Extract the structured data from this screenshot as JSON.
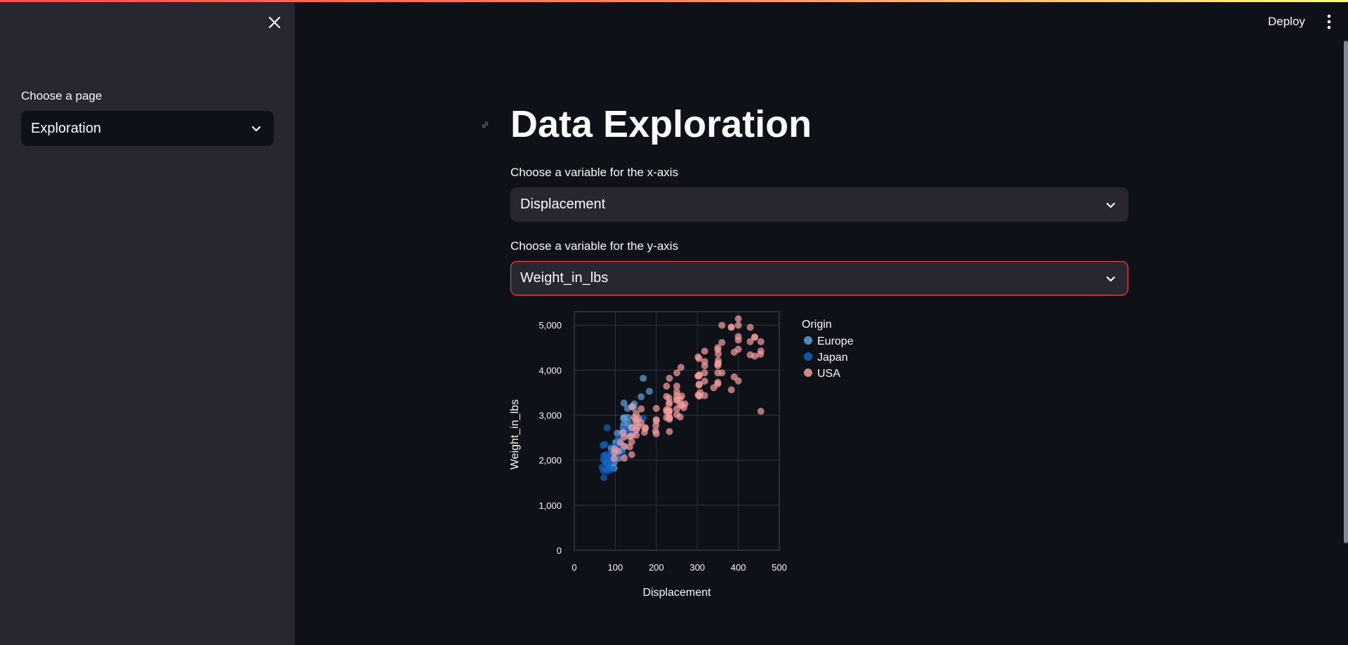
{
  "sidebar": {
    "page_label": "Choose a page",
    "page_value": "Exploration"
  },
  "header": {
    "deploy_label": "Deploy"
  },
  "main": {
    "title": "Data Exploration",
    "x_label": "Choose a variable for the x-axis",
    "x_value": "Displacement",
    "y_label": "Choose a variable for the y-axis",
    "y_value": "Weight_in_lbs"
  },
  "colors": {
    "background": "#0e1117",
    "sidebar": "#262730",
    "accent": "#ff4b4b",
    "grid": "#31333f",
    "europe": "#5d9fd9",
    "japan": "#0e63c4",
    "usa": "#f39b9b"
  },
  "chart_data": {
    "type": "scatter",
    "xlabel": "Displacement",
    "ylabel": "Weight_in_lbs",
    "xlim": [
      0,
      500
    ],
    "ylim": [
      0,
      5300
    ],
    "x_ticks": [
      "0",
      "100",
      "200",
      "300",
      "400",
      "500"
    ],
    "y_ticks": [
      "0",
      "1,000",
      "2,000",
      "3,000",
      "4,000",
      "5,000"
    ],
    "grid": true,
    "legend": {
      "title": "Origin",
      "placement": "right"
    },
    "series": [
      {
        "name": "Europe",
        "points": [
          [
            90,
            2130
          ],
          [
            97,
            1950
          ],
          [
            97,
            2190
          ],
          [
            107,
            2430
          ],
          [
            116,
            2230
          ],
          [
            120,
            2300
          ],
          [
            121,
            2600
          ],
          [
            121,
            2670
          ],
          [
            121,
            2945
          ],
          [
            114,
            2310
          ],
          [
            104,
            2375
          ],
          [
            130,
            3150
          ],
          [
            131,
            2830
          ],
          [
            141,
            3190
          ],
          [
            146,
            3250
          ],
          [
            163,
            3410
          ],
          [
            168,
            3820
          ],
          [
            183,
            3530
          ],
          [
            105,
            2600
          ],
          [
            79,
            1960
          ],
          [
            97,
            1825
          ],
          [
            108,
            2040
          ],
          [
            89,
            1925
          ],
          [
            90,
            2265
          ],
          [
            98,
            2045
          ],
          [
            134,
            2702
          ],
          [
            120,
            2930
          ],
          [
            116,
            2600
          ],
          [
            121,
            3270
          ],
          [
            110,
            2300
          ],
          [
            119,
            2720
          ],
          [
            130,
            2950
          ],
          [
            101,
            2395
          ],
          [
            86,
            1835
          ],
          [
            151,
            2700
          ],
          [
            116,
            2220
          ],
          [
            140,
            2740
          ],
          [
            97,
            2300
          ],
          [
            121,
            2800
          ],
          [
            145,
            3160
          ]
        ]
      },
      {
        "name": "Japan",
        "points": [
          [
            70,
            2330
          ],
          [
            71,
            1773
          ],
          [
            72,
            2100
          ],
          [
            75,
            2350
          ],
          [
            78,
            2125
          ],
          [
            79,
            1825
          ],
          [
            80,
            2720
          ],
          [
            81,
            1760
          ],
          [
            85,
            1940
          ],
          [
            86,
            1980
          ],
          [
            90,
            2150
          ],
          [
            91,
            1800
          ],
          [
            97,
            2100
          ],
          [
            97,
            2300
          ],
          [
            98,
            2040
          ],
          [
            107,
            2210
          ],
          [
            108,
            2380
          ],
          [
            112,
            2320
          ],
          [
            113,
            2370
          ],
          [
            119,
            2560
          ],
          [
            120,
            2700
          ],
          [
            122,
            2300
          ],
          [
            134,
            2540
          ],
          [
            144,
            2600
          ],
          [
            146,
            2900
          ],
          [
            156,
            2800
          ],
          [
            168,
            2930
          ],
          [
            68,
            1845
          ],
          [
            72,
            1613
          ],
          [
            76,
            1965
          ],
          [
            89,
            2050
          ],
          [
            91,
            1985
          ],
          [
            97,
            2155
          ],
          [
            107,
            2464
          ],
          [
            113,
            2226
          ],
          [
            120,
            2120
          ],
          [
            85,
            2070
          ],
          [
            108,
            2255
          ],
          [
            71,
            2015
          ],
          [
            97,
            2300
          ],
          [
            134,
            2655
          ]
        ]
      },
      {
        "name": "USA",
        "points": [
          [
            307,
            3504
          ],
          [
            350,
            3693
          ],
          [
            318,
            3436
          ],
          [
            304,
            3433
          ],
          [
            302,
            3449
          ],
          [
            429,
            4341
          ],
          [
            454,
            4354
          ],
          [
            440,
            4312
          ],
          [
            455,
            4425
          ],
          [
            390,
            3850
          ],
          [
            383,
            3563
          ],
          [
            340,
            3609
          ],
          [
            400,
            3761
          ],
          [
            455,
            3086
          ],
          [
            350,
            4135
          ],
          [
            400,
            4464
          ],
          [
            351,
            4154
          ],
          [
            318,
            4096
          ],
          [
            383,
            4955
          ],
          [
            400,
            4746
          ],
          [
            360,
            4997
          ],
          [
            304,
            3672
          ],
          [
            440,
            4735
          ],
          [
            231,
            3245
          ],
          [
            250,
            3645
          ],
          [
            225,
            3121
          ],
          [
            232,
            2945
          ],
          [
            258,
            3233
          ],
          [
            250,
            3329
          ],
          [
            199,
            2774
          ],
          [
            232,
            3288
          ],
          [
            250,
            3139
          ],
          [
            232,
            2634
          ],
          [
            171,
            2619
          ],
          [
            200,
            2587
          ],
          [
            232,
            3102
          ],
          [
            140,
            2408
          ],
          [
            122,
            2310
          ],
          [
            140,
            2124
          ],
          [
            141,
            3190
          ],
          [
            151,
            2670
          ],
          [
            173,
            2725
          ],
          [
            151,
            2556
          ],
          [
            112,
            2395
          ],
          [
            135,
            2295
          ],
          [
            98,
            2164
          ],
          [
            140,
            2542
          ],
          [
            262,
            3221
          ],
          [
            232,
            2910
          ],
          [
            267,
            3169
          ],
          [
            305,
            3897
          ],
          [
            318,
            4422
          ],
          [
            350,
            4456
          ],
          [
            302,
            3870
          ],
          [
            260,
            4060
          ],
          [
            250,
            3940
          ],
          [
            400,
            4668
          ],
          [
            350,
            4499
          ],
          [
            318,
            4190
          ],
          [
            351,
            4360
          ],
          [
            400,
            5140
          ],
          [
            383,
            4951
          ],
          [
            360,
            4615
          ],
          [
            429,
            4951
          ],
          [
            455,
            4633
          ],
          [
            250,
            3353
          ],
          [
            225,
            3415
          ],
          [
            231,
            3085
          ],
          [
            225,
            3086
          ],
          [
            258,
            2962
          ],
          [
            163,
            3140
          ],
          [
            200,
            2900
          ],
          [
            156,
            2745
          ],
          [
            225,
            3645
          ],
          [
            302,
            4294
          ],
          [
            350,
            3940
          ],
          [
            305,
            3425
          ],
          [
            318,
            3940
          ],
          [
            429,
            4633
          ],
          [
            304,
            4257
          ],
          [
            400,
            4997
          ],
          [
            440,
            4732
          ],
          [
            351,
            4215
          ],
          [
            250,
            3520
          ],
          [
            232,
            3820
          ],
          [
            173,
            2700
          ],
          [
            151,
            3035
          ],
          [
            119,
            2615
          ],
          [
            140,
            2720
          ],
          [
            135,
            2525
          ],
          [
            98,
            2255
          ],
          [
            108,
            2200
          ],
          [
            97,
            2035
          ],
          [
            146,
            2950
          ],
          [
            156,
            2930
          ],
          [
            200,
            3150
          ],
          [
            231,
            3380
          ],
          [
            262,
            3425
          ],
          [
            270,
            3250
          ],
          [
            302,
            3870
          ],
          [
            305,
            3690
          ],
          [
            318,
            3755
          ],
          [
            360,
            3940
          ],
          [
            350,
            4100
          ],
          [
            390,
            4400
          ],
          [
            225,
            2945
          ],
          [
            250,
            3012
          ],
          [
            258,
            3365
          ],
          [
            163,
            2833
          ],
          [
            121,
            2511
          ],
          [
            151,
            2825
          ],
          [
            151,
            2900
          ],
          [
            231,
            3060
          ],
          [
            122,
            2045
          ],
          [
            198,
            2648
          ],
          [
            200,
            2875
          ],
          [
            250,
            3434
          ],
          [
            232,
            2945
          ],
          [
            350,
            3730
          ],
          [
            305,
            3880
          ]
        ]
      }
    ]
  }
}
